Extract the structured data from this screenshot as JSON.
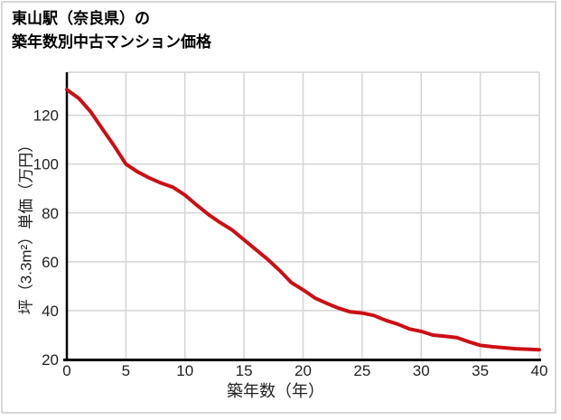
{
  "title": {
    "line1": "東山駅（奈良県）の",
    "line2": "築年数別中古マンション価格"
  },
  "chart_data": {
    "type": "line",
    "title": "東山駅（奈良県）の築年数別中古マンション価格",
    "xlabel": "築年数（年）",
    "ylabel": "坪（3.3m²）単価（万円）",
    "x": [
      0,
      1,
      2,
      3,
      4,
      5,
      6,
      7,
      8,
      9,
      10,
      11,
      12,
      13,
      14,
      15,
      16,
      17,
      18,
      19,
      20,
      21,
      22,
      23,
      24,
      25,
      26,
      27,
      28,
      29,
      30,
      31,
      32,
      33,
      34,
      35,
      36,
      37,
      38,
      39,
      40
    ],
    "series": [
      {
        "name": "坪（3.3m²）単価（万円）",
        "values": [
          130.5,
          127,
          121.5,
          114.5,
          107.5,
          100,
          96.8,
          94.3,
          92.2,
          90.5,
          87.3,
          83.2,
          79.3,
          76,
          73,
          69,
          65,
          61,
          56.5,
          51.5,
          48.5,
          45.2,
          43,
          41,
          39.5,
          39,
          38,
          36,
          34.5,
          32.5,
          31.5,
          30,
          29.5,
          29,
          27.3,
          25.8,
          25.2,
          24.8,
          24.4,
          24.2,
          24
        ]
      }
    ],
    "x_ticks": [
      0,
      5,
      10,
      15,
      20,
      25,
      30,
      35,
      40
    ],
    "y_ticks": [
      20,
      40,
      60,
      80,
      100,
      120
    ],
    "xlim": [
      0,
      40
    ],
    "ylim": [
      20,
      137.6
    ],
    "grid": true,
    "legend": false
  },
  "colors": {
    "line": "#cc0f15",
    "grid": "#d4d4d4",
    "axis": "#000000",
    "border": "#d7d7d7",
    "text": "#1f1f1f",
    "background": "#ffffff"
  }
}
